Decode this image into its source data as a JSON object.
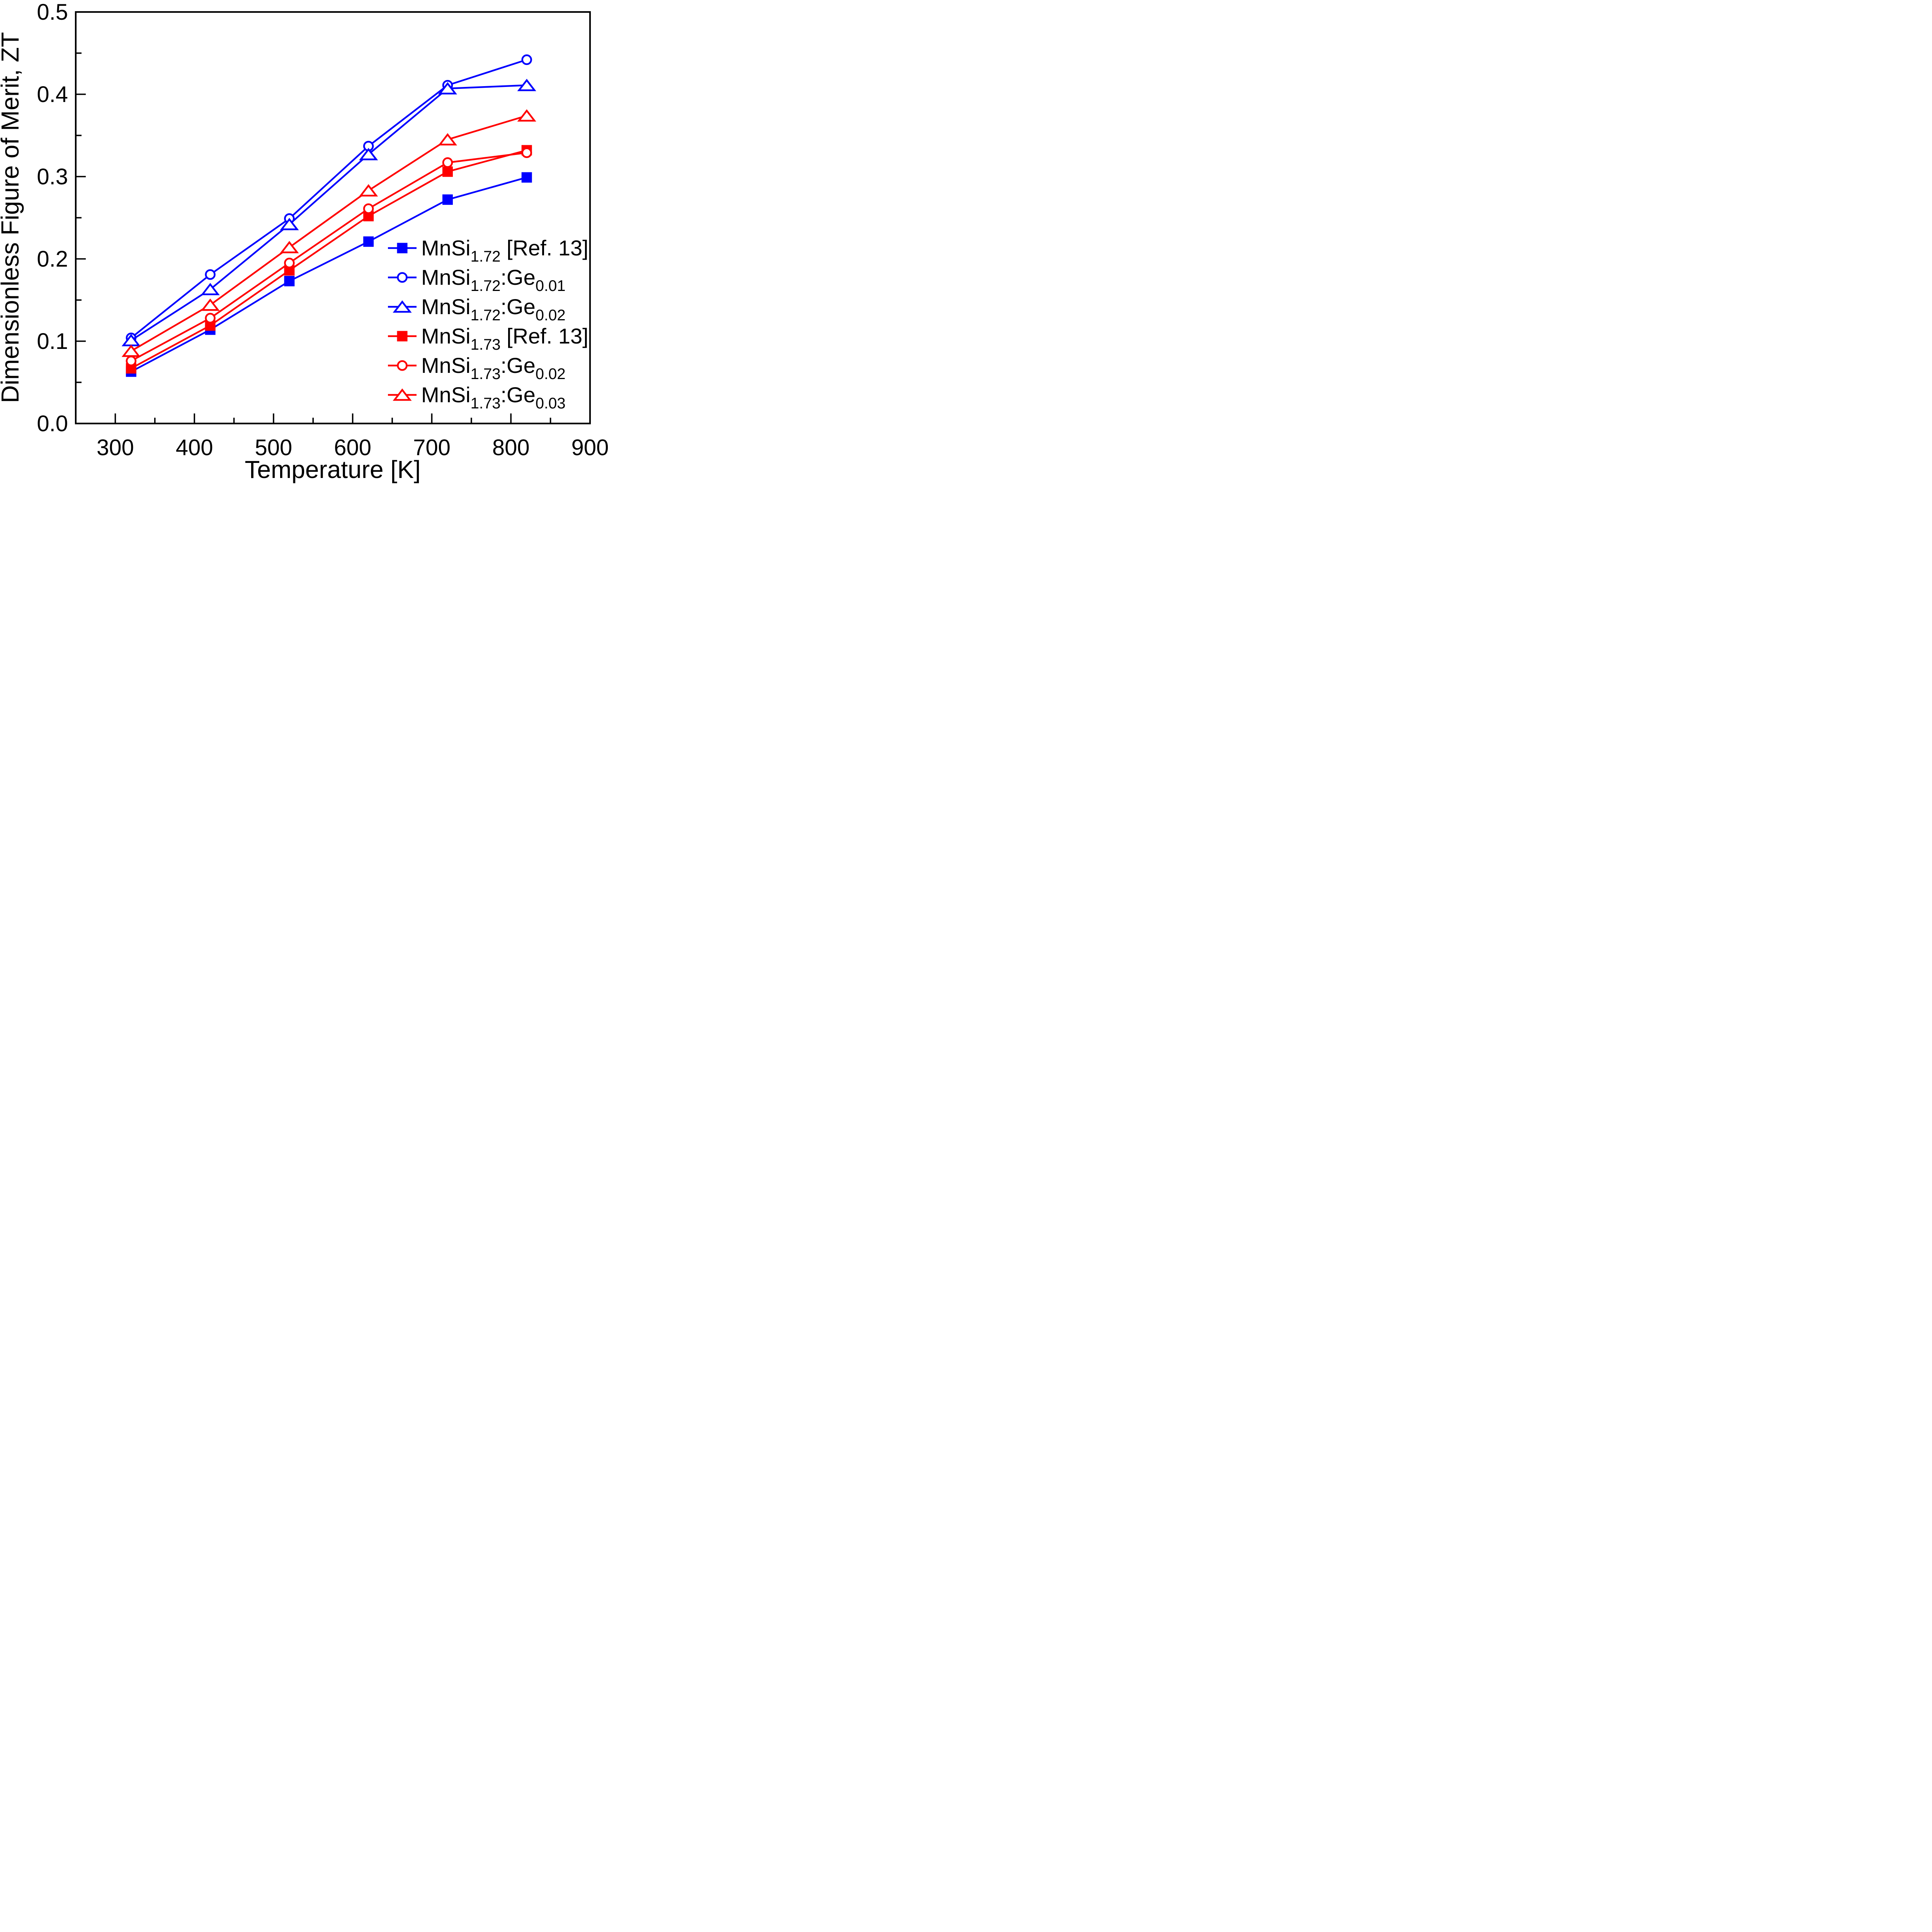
{
  "figure": {
    "description": "Line-scatter plot of dimensionless figure of merit ZT versus temperature for MnSi-based thermoelectric samples",
    "background_color": "#ffffff",
    "text_color": "#000000"
  },
  "chart_data": {
    "type": "line",
    "title": "",
    "xlabel": "Temperature [K]",
    "ylabel": "Dimensionless Figure of Merit, ZT",
    "grid": false,
    "legend_position": "inside lower right",
    "xlim": [
      250,
      900
    ],
    "ylim": [
      0.0,
      0.5
    ],
    "x_major_ticks": [
      300,
      400,
      500,
      600,
      700,
      800,
      900
    ],
    "x_major_tick_labels": [
      "300",
      "400",
      "500",
      "600",
      "700",
      "800",
      "900"
    ],
    "x_minor_ticks": [
      350,
      450,
      550,
      650,
      750,
      850
    ],
    "y_major_ticks": [
      0.0,
      0.1,
      0.2,
      0.3,
      0.4,
      0.5
    ],
    "y_major_tick_labels": [
      "0.0",
      "0.1",
      "0.2",
      "0.3",
      "0.4",
      "0.5"
    ],
    "y_minor_ticks": [
      0.05,
      0.15,
      0.25,
      0.35,
      0.45
    ],
    "x": [
      320,
      420,
      520,
      620,
      720,
      820
    ],
    "series": [
      {
        "name": "MnSi1.72 [Ref. 13]",
        "color": "#0000ff",
        "marker": "square",
        "marker_fill": "filled",
        "values": [
          0.063,
          0.114,
          0.173,
          0.221,
          0.272,
          0.299
        ],
        "label_parts": [
          [
            "t",
            "MnSi"
          ],
          [
            "s",
            "1.72"
          ],
          [
            "t",
            " [Ref. 13]"
          ]
        ]
      },
      {
        "name": "MnSi1.72:Ge0.01",
        "color": "#0000ff",
        "marker": "circle",
        "marker_fill": "open",
        "values": [
          0.104,
          0.181,
          0.249,
          0.337,
          0.411,
          0.442
        ],
        "label_parts": [
          [
            "t",
            "MnSi"
          ],
          [
            "s",
            "1.72"
          ],
          [
            "t",
            ":Ge"
          ],
          [
            "s",
            "0.01"
          ]
        ]
      },
      {
        "name": "MnSi1.72:Ge0.02",
        "color": "#0000ff",
        "marker": "triangle",
        "marker_fill": "open",
        "values": [
          0.101,
          0.163,
          0.242,
          0.327,
          0.407,
          0.411
        ],
        "label_parts": [
          [
            "t",
            "MnSi"
          ],
          [
            "s",
            "1.72"
          ],
          [
            "t",
            ":Ge"
          ],
          [
            "s",
            "0.02"
          ]
        ]
      },
      {
        "name": "MnSi1.73 [Ref. 13]",
        "color": "#ff0000",
        "marker": "square",
        "marker_fill": "filled",
        "values": [
          0.067,
          0.119,
          0.186,
          0.252,
          0.306,
          0.332
        ],
        "label_parts": [
          [
            "t",
            "MnSi"
          ],
          [
            "s",
            "1.73"
          ],
          [
            "t",
            " [Ref. 13]"
          ]
        ]
      },
      {
        "name": "MnSi1.73:Ge0.02",
        "color": "#ff0000",
        "marker": "circle",
        "marker_fill": "open",
        "values": [
          0.076,
          0.128,
          0.195,
          0.261,
          0.317,
          0.329
        ],
        "label_parts": [
          [
            "t",
            "MnSi"
          ],
          [
            "s",
            "1.73"
          ],
          [
            "t",
            ":Ge"
          ],
          [
            "s",
            "0.02"
          ]
        ]
      },
      {
        "name": "MnSi1.73:Ge0.03",
        "color": "#ff0000",
        "marker": "triangle",
        "marker_fill": "open",
        "values": [
          0.088,
          0.144,
          0.214,
          0.283,
          0.345,
          0.374
        ],
        "label_parts": [
          [
            "t",
            "MnSi"
          ],
          [
            "s",
            "1.73"
          ],
          [
            "t",
            ":Ge"
          ],
          [
            "s",
            "0.03"
          ]
        ]
      }
    ]
  }
}
